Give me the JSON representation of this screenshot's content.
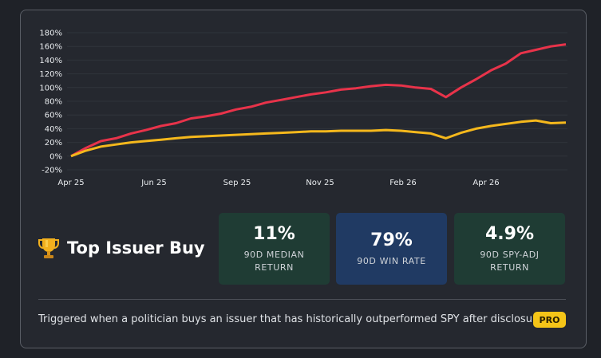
{
  "chart_data": {
    "type": "line",
    "x_ticks": [
      "Apr 25",
      "Jun 25",
      "Sep 25",
      "Nov 25",
      "Feb 26",
      "Apr 26"
    ],
    "y_ticks": [
      "-20%",
      "0%",
      "20%",
      "40%",
      "60%",
      "80%",
      "100%",
      "120%",
      "140%",
      "160%",
      "180%"
    ],
    "ylim": [
      -20,
      180
    ],
    "grid": true,
    "series": [
      {
        "color": "#e8334a",
        "values": [
          0,
          12,
          22,
          26,
          33,
          38,
          44,
          48,
          55,
          58,
          62,
          68,
          72,
          78,
          82,
          86,
          90,
          93,
          97,
          99,
          102,
          104,
          103,
          100,
          98,
          86,
          100,
          112,
          125,
          135,
          150,
          155,
          160,
          163
        ]
      },
      {
        "color": "#f5b81c",
        "values": [
          0,
          8,
          14,
          17,
          20,
          22,
          24,
          26,
          28,
          29,
          30,
          31,
          32,
          33,
          34,
          35,
          36,
          36,
          37,
          37,
          37,
          38,
          37,
          35,
          33,
          26,
          34,
          40,
          44,
          47,
          50,
          52,
          48,
          49
        ]
      }
    ]
  },
  "title": "Top Issuer Buy",
  "stats": [
    {
      "value": "11%",
      "label_line1": "90D MEDIAN",
      "label_line2": "RETURN",
      "color": "#1f3c34"
    },
    {
      "value": "79%",
      "label_line1": "90D WIN RATE",
      "label_line2": "",
      "color": "#203a63"
    },
    {
      "value": "4.9%",
      "label_line1": "90D SPY-ADJ",
      "label_line2": "RETURN",
      "color": "#1f3c34"
    }
  ],
  "footer_text": "Triggered when a politician buys an issuer that has historically outperformed SPY after disclosure",
  "badge": "PRO",
  "icons": {
    "trophy": "trophy-icon"
  }
}
